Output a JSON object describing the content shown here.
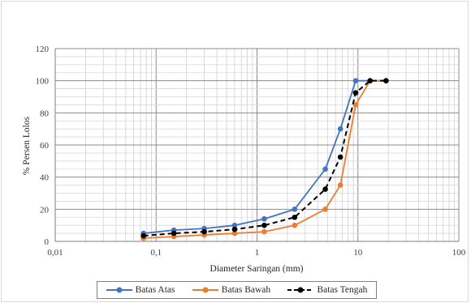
{
  "chart_data": {
    "type": "line",
    "title": "",
    "xlabel": "Diameter Saringan (mm)",
    "ylabel": "% Persen Lolos",
    "x_scale": "log",
    "xlim": [
      0.01,
      100
    ],
    "ylim": [
      0,
      120
    ],
    "grid": true,
    "legend_position": "bottom",
    "x_tick_labels": [
      "0,01",
      "0,1",
      "1",
      "10",
      "100"
    ],
    "y_tick_labels": [
      "0",
      "20",
      "40",
      "60",
      "80",
      "100",
      "120"
    ],
    "series": [
      {
        "name": "Batas Atas",
        "color": "#4472c4",
        "line_style": "solid",
        "x": [
          0.075,
          0.15,
          0.3,
          0.6,
          1.18,
          2.36,
          4.75,
          6.7,
          9.5,
          13.2,
          19
        ],
        "y": [
          5,
          7,
          8,
          10,
          14,
          20,
          45,
          70,
          100,
          100,
          100
        ]
      },
      {
        "name": "Batas Bawah",
        "color": "#ed7d31",
        "line_style": "solid",
        "x": [
          0.075,
          0.15,
          0.3,
          0.6,
          1.18,
          2.36,
          4.75,
          6.7,
          9.5,
          13.2,
          19
        ],
        "y": [
          2,
          3,
          4,
          5,
          6,
          10,
          20,
          35,
          85,
          100,
          100
        ]
      },
      {
        "name": "Batas Tengah",
        "color": "#000000",
        "line_style": "dashed",
        "x": [
          0.075,
          0.15,
          0.3,
          0.6,
          1.18,
          2.36,
          4.75,
          6.7,
          9.5,
          13.2,
          19
        ],
        "y": [
          3.5,
          5,
          6,
          7.5,
          10,
          15,
          32.5,
          52.5,
          92.5,
          100,
          100
        ]
      }
    ]
  }
}
